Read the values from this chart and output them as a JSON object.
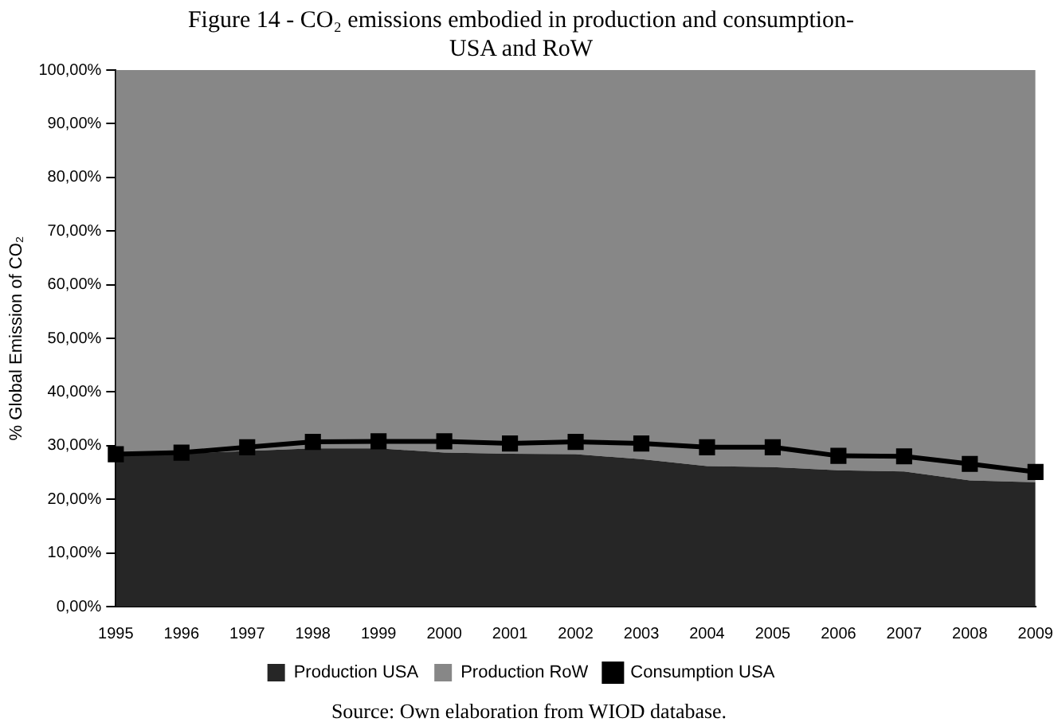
{
  "chart_data": {
    "type": "area",
    "title": [
      "Figure 14 - CO₂ emissions embodied in production and consumption-",
      "USA and RoW"
    ],
    "ylabel": "% Global Emission of CO₂",
    "categories": [
      "1995",
      "1996",
      "1997",
      "1998",
      "1999",
      "2000",
      "2001",
      "2002",
      "2003",
      "2004",
      "2005",
      "2006",
      "2007",
      "2008",
      "2009"
    ],
    "stacked": true,
    "series": [
      {
        "name": "Production USA",
        "color": "#262626",
        "values": [
          28.3,
          28.5,
          29.0,
          29.5,
          29.5,
          28.7,
          28.5,
          28.4,
          27.5,
          26.2,
          26.0,
          25.4,
          25.2,
          23.5,
          23.2
        ]
      },
      {
        "name": "Production RoW",
        "color": "#878787",
        "values": [
          71.7,
          71.5,
          71.0,
          70.5,
          70.5,
          71.3,
          71.5,
          71.6,
          72.5,
          73.8,
          74.0,
          74.6,
          74.8,
          76.5,
          76.8
        ]
      },
      {
        "name": "Consumption USA",
        "type": "line",
        "color": "#000000",
        "marker": "square",
        "values": [
          28.4,
          28.7,
          29.7,
          30.7,
          30.8,
          30.8,
          30.4,
          30.7,
          30.4,
          29.7,
          29.7,
          28.1,
          28.0,
          26.6,
          25.1
        ]
      }
    ],
    "ylim": [
      0,
      100
    ],
    "yticks": [
      {
        "value": 0,
        "label": "0,00%"
      },
      {
        "value": 10,
        "label": "10,00%"
      },
      {
        "value": 20,
        "label": "20,00%"
      },
      {
        "value": 30,
        "label": "30,00%"
      },
      {
        "value": 40,
        "label": "40,00%"
      },
      {
        "value": 50,
        "label": "50,00%"
      },
      {
        "value": 60,
        "label": "60,00%"
      },
      {
        "value": 70,
        "label": "70,00%"
      },
      {
        "value": 80,
        "label": "80,00%"
      },
      {
        "value": 90,
        "label": "90,00%"
      },
      {
        "value": 100,
        "label": "100,00%"
      }
    ],
    "grid": false,
    "legend": "bottom",
    "annotations": [
      "Source: Own elaboration from WIOD database."
    ]
  }
}
